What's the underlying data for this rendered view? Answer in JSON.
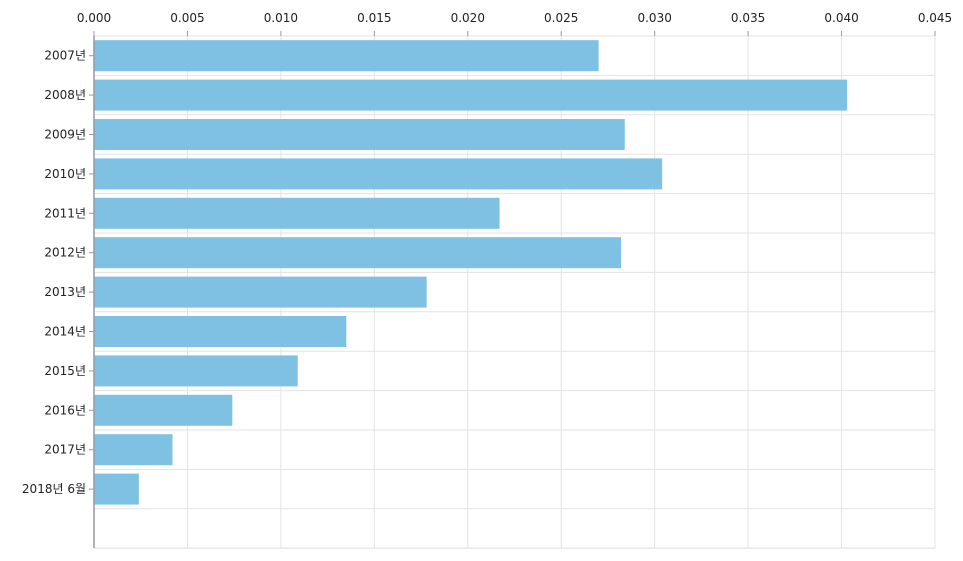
{
  "chart_data": {
    "type": "bar",
    "orientation": "horizontal",
    "categories": [
      "2007년",
      "2008년",
      "2009년",
      "2010년",
      "2011년",
      "2012년",
      "2013년",
      "2014년",
      "2015년",
      "2016년",
      "2017년",
      "2018년 6월"
    ],
    "values": [
      0.027,
      0.0403,
      0.0284,
      0.0304,
      0.0217,
      0.0282,
      0.0178,
      0.0135,
      0.0109,
      0.0074,
      0.0042,
      0.0024
    ],
    "xlim": [
      0,
      0.045
    ],
    "x_ticks": [
      "0.000",
      "0.005",
      "0.010",
      "0.015",
      "0.020",
      "0.025",
      "0.030",
      "0.035",
      "0.040",
      "0.045"
    ],
    "x_axis_position": "top",
    "grid": true,
    "bar_color": "#7fc1e2",
    "grid_color": "#e3e3e3",
    "axis_color": "#999999",
    "title": "",
    "xlabel": "",
    "ylabel": ""
  }
}
